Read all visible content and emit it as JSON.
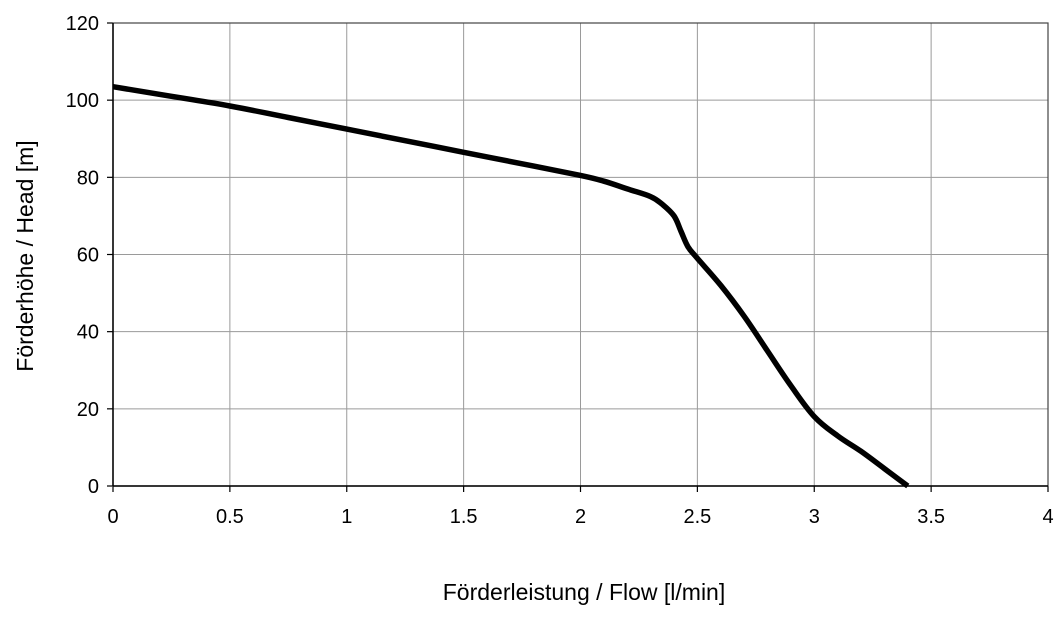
{
  "chart_data": {
    "type": "line",
    "title": "",
    "xlabel": "Förderleistung / Flow  [l/min]",
    "ylabel": "Förderhöhe / Head  [m]",
    "xlim": [
      0,
      4
    ],
    "ylim": [
      0,
      120
    ],
    "x_ticks": [
      "0",
      "0.5",
      "1",
      "1.5",
      "2",
      "2.5",
      "3",
      "3.5",
      "4"
    ],
    "y_ticks": [
      "0",
      "20",
      "40",
      "60",
      "80",
      "100",
      "120"
    ],
    "grid": true,
    "legend": "none",
    "series": [
      {
        "color": "#000000",
        "x": [
          0,
          0.25,
          0.5,
          0.75,
          1.0,
          1.25,
          1.5,
          1.75,
          2.0,
          2.1,
          2.2,
          2.3,
          2.35,
          2.4,
          2.43,
          2.46,
          2.5,
          2.6,
          2.7,
          2.8,
          2.9,
          3.0,
          3.1,
          3.2,
          3.3,
          3.4
        ],
        "y": [
          103.5,
          101,
          98.5,
          95.5,
          92.5,
          89.5,
          86.5,
          83.5,
          80.5,
          79,
          77,
          75,
          73,
          70,
          66,
          62,
          59,
          52,
          44,
          35,
          26,
          18,
          13,
          9,
          4.5,
          0
        ]
      }
    ]
  }
}
